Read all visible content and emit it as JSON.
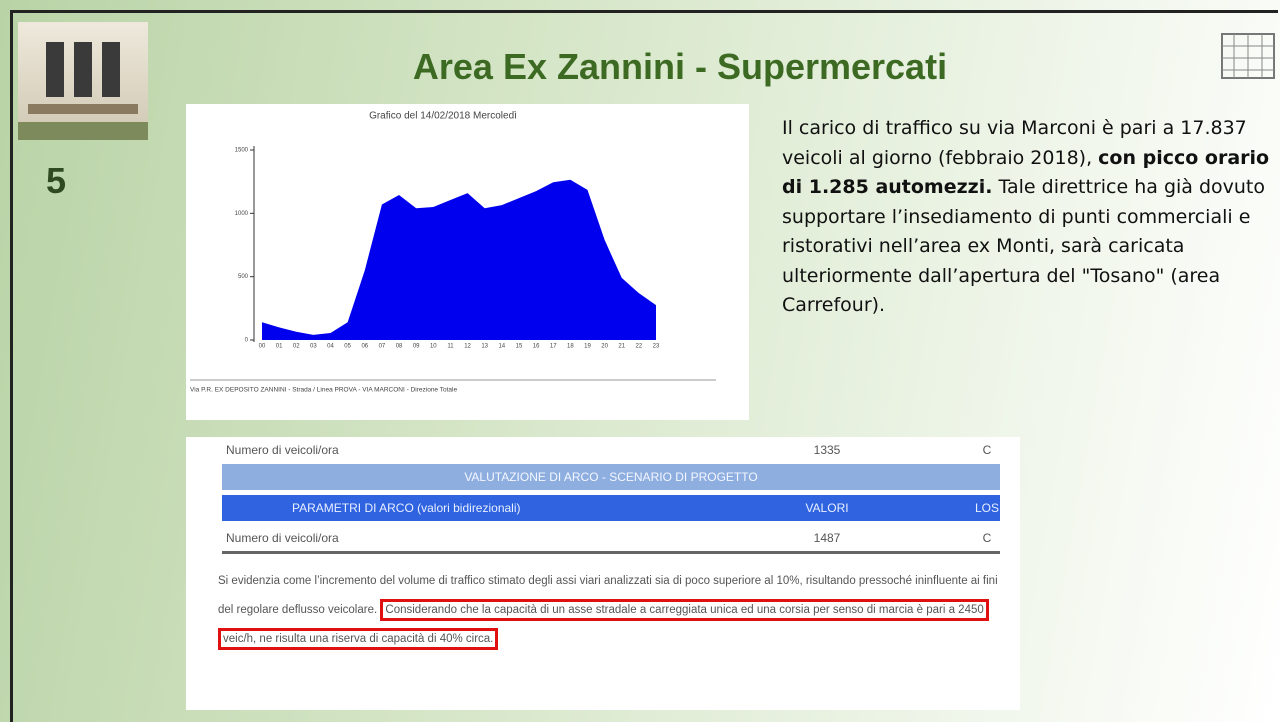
{
  "header": {
    "title": "Area Ex Zannini - Supermercati",
    "slide_number": "5"
  },
  "chart_data": {
    "type": "area",
    "title": "Grafico del 14/02/2018  Mercoledì",
    "categories": [
      "00",
      "01",
      "02",
      "03",
      "04",
      "05",
      "06",
      "07",
      "08",
      "09",
      "10",
      "11",
      "12",
      "13",
      "14",
      "15",
      "16",
      "17",
      "18",
      "19",
      "20",
      "21",
      "22",
      "23"
    ],
    "values": [
      140,
      100,
      65,
      40,
      55,
      140,
      550,
      1070,
      1145,
      1040,
      1050,
      1105,
      1160,
      1040,
      1065,
      1120,
      1175,
      1245,
      1265,
      1185,
      790,
      490,
      370,
      275
    ],
    "color": "#0000ee",
    "ylim": [
      0,
      1500
    ],
    "yticks": [
      0,
      500,
      1000,
      1500
    ],
    "footer": "Via P.R. EX DEPOSITO ZANNINI - Strada / Linea PROVA - VIA MARCONI - Direzione Totale"
  },
  "text": {
    "intro": "Il carico di traffico su via Marconi è pari a 17.837 veicoli al giorno (febbraio 2018),",
    "highlight": "con picco orario di 1.285 automezzi.",
    "rest": "Tale direttrice ha già dovuto supportare l’insediamento di punti commerciali e ristorativi nell’area ex Monti, sarà caricata ulteriormente dall’apertura del \"Tosano\" (area Carrefour)."
  },
  "table": {
    "row_before": [
      "Numero di veicoli/ora",
      "1335",
      "C"
    ],
    "section": "VALUTAZIONE DI ARCO - SCENARIO DI PROGETTO",
    "header": [
      "PARAMETRI DI ARCO (valori bidirezionali)",
      "VALORI",
      "LOS"
    ],
    "row_after": [
      "Numero di veicoli/ora",
      "1487",
      "C"
    ]
  },
  "note": {
    "text": "Si evidenzia come l’incremento del volume di traffico stimato degli assi viari analizzati sia di poco superiore al 10%, risultando pressoché ininfluente ai fini del regolare deflusso veicolare.",
    "highlight": "Considerando che la capacità di un asse stradale a carreggiata unica ed una corsia per senso di marcia è pari a 2450 veic/h, ne risulta una riserva di capacità di 40% circa."
  }
}
